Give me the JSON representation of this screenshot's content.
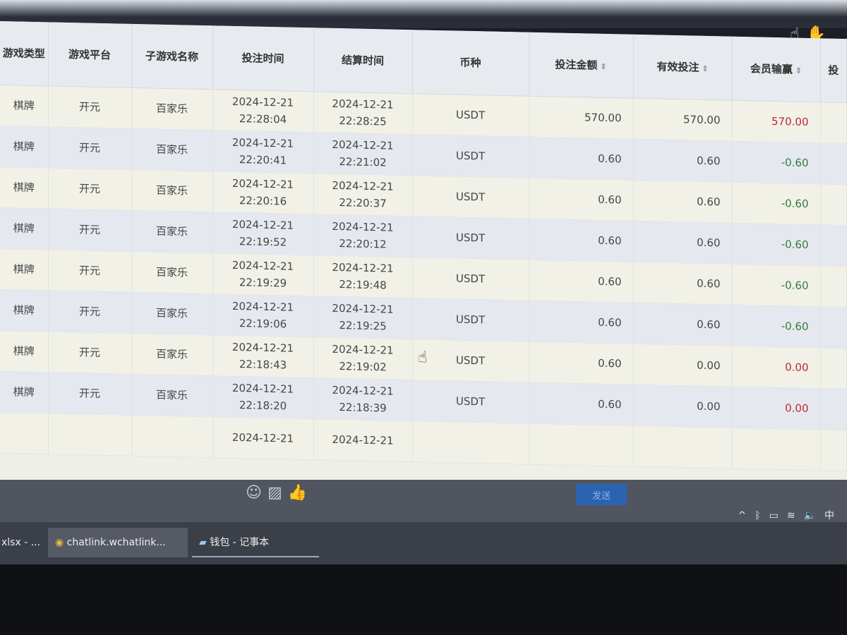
{
  "table": {
    "headers": [
      "游戏类型",
      "游戏平台",
      "子游戏名称",
      "投注时间",
      "结算时间",
      "币种",
      "投注金额",
      "有效投注",
      "会员输赢",
      "投"
    ],
    "rows": [
      {
        "type": "棋牌",
        "platform": "开元",
        "game": "百家乐",
        "bet_date": "2024-12-21",
        "bet_time": "22:28:04",
        "settle_date": "2024-12-21",
        "settle_time": "22:28:25",
        "currency": "USDT",
        "amount": "570.00",
        "valid": "570.00",
        "win": "570.00",
        "win_sign": "pos"
      },
      {
        "type": "棋牌",
        "platform": "开元",
        "game": "百家乐",
        "bet_date": "2024-12-21",
        "bet_time": "22:20:41",
        "settle_date": "2024-12-21",
        "settle_time": "22:21:02",
        "currency": "USDT",
        "amount": "0.60",
        "valid": "0.60",
        "win": "-0.60",
        "win_sign": "neg"
      },
      {
        "type": "棋牌",
        "platform": "开元",
        "game": "百家乐",
        "bet_date": "2024-12-21",
        "bet_time": "22:20:16",
        "settle_date": "2024-12-21",
        "settle_time": "22:20:37",
        "currency": "USDT",
        "amount": "0.60",
        "valid": "0.60",
        "win": "-0.60",
        "win_sign": "neg"
      },
      {
        "type": "棋牌",
        "platform": "开元",
        "game": "百家乐",
        "bet_date": "2024-12-21",
        "bet_time": "22:19:52",
        "settle_date": "2024-12-21",
        "settle_time": "22:20:12",
        "currency": "USDT",
        "amount": "0.60",
        "valid": "0.60",
        "win": "-0.60",
        "win_sign": "neg"
      },
      {
        "type": "棋牌",
        "platform": "开元",
        "game": "百家乐",
        "bet_date": "2024-12-21",
        "bet_time": "22:19:29",
        "settle_date": "2024-12-21",
        "settle_time": "22:19:48",
        "currency": "USDT",
        "amount": "0.60",
        "valid": "0.60",
        "win": "-0.60",
        "win_sign": "neg"
      },
      {
        "type": "棋牌",
        "platform": "开元",
        "game": "百家乐",
        "bet_date": "2024-12-21",
        "bet_time": "22:19:06",
        "settle_date": "2024-12-21",
        "settle_time": "22:19:25",
        "currency": "USDT",
        "amount": "0.60",
        "valid": "0.60",
        "win": "-0.60",
        "win_sign": "neg"
      },
      {
        "type": "棋牌",
        "platform": "开元",
        "game": "百家乐",
        "bet_date": "2024-12-21",
        "bet_time": "22:18:43",
        "settle_date": "2024-12-21",
        "settle_time": "22:19:02",
        "currency": "USDT",
        "amount": "0.60",
        "valid": "0.00",
        "win": "0.00",
        "win_sign": "pos"
      },
      {
        "type": "棋牌",
        "platform": "开元",
        "game": "百家乐",
        "bet_date": "2024-12-21",
        "bet_time": "22:18:20",
        "settle_date": "2024-12-21",
        "settle_time": "22:18:39",
        "currency": "USDT",
        "amount": "0.60",
        "valid": "0.00",
        "win": "0.00",
        "win_sign": "pos"
      },
      {
        "type": "",
        "platform": "",
        "game": "",
        "bet_date": "2024-12-21",
        "bet_time": "",
        "settle_date": "2024-12-21",
        "settle_time": "",
        "currency": "",
        "amount": "",
        "valid": "",
        "win": "",
        "win_sign": "pos"
      }
    ]
  },
  "chat": {
    "send_label": "发送",
    "icons": [
      "smiley-icon",
      "image-icon",
      "thumbs-up-icon"
    ]
  },
  "tray": {
    "ime": "中"
  },
  "taskbar": {
    "items": [
      "xlsx - ...",
      "chatlink.wchatlink...",
      "钱包 - 记事本"
    ]
  },
  "colors": {
    "positive": "#c0262d",
    "negative": "#2f7a3b",
    "send_button": "#2b63b3"
  }
}
